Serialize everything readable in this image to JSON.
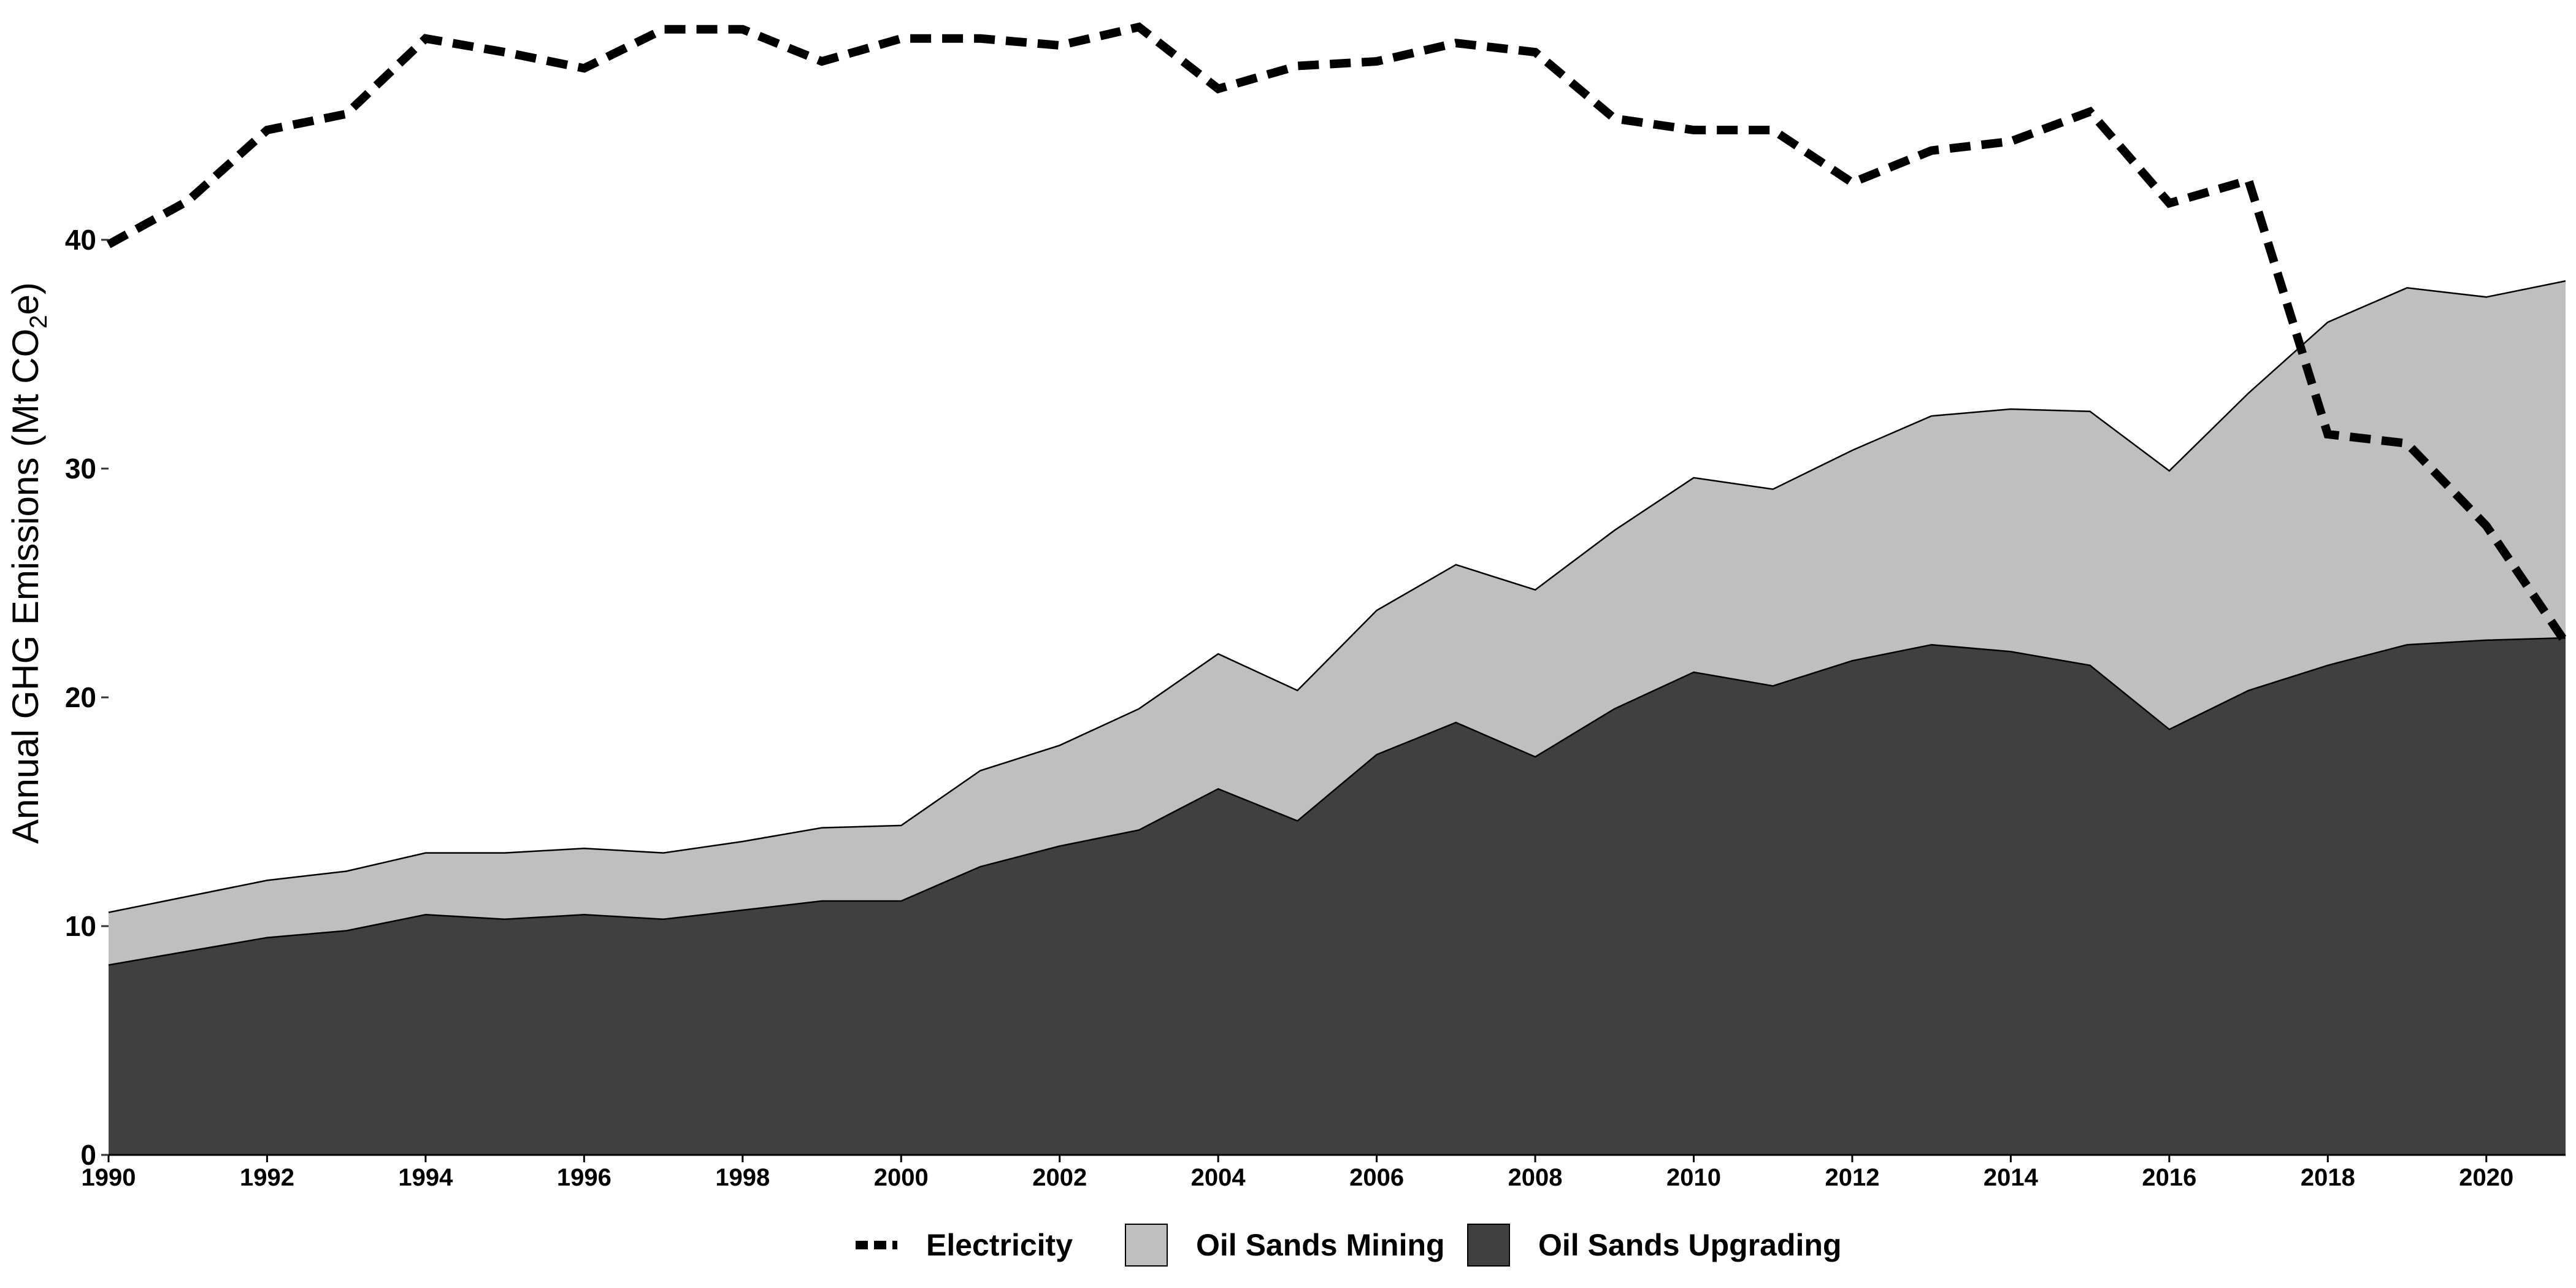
{
  "chart_data": {
    "type": "area",
    "title": "",
    "xlabel": "",
    "ylabel": "Annual GHG Emissions  (Mt CO",
    "ylabel_subscript": "2",
    "ylabel_suffix": "e)",
    "xlim": [
      1990,
      2021
    ],
    "ylim": [
      0,
      50
    ],
    "x_ticks": [
      "1990",
      "1992",
      "1994",
      "1996",
      "1998",
      "2000",
      "2002",
      "2004",
      "2006",
      "2008",
      "2010",
      "2012",
      "2014",
      "2016",
      "2018",
      "2020"
    ],
    "y_ticks": [
      "0",
      "10",
      "20",
      "30",
      "40"
    ],
    "grid": false,
    "legend_position": "bottom",
    "x": [
      1990,
      1991,
      1992,
      1993,
      1994,
      1995,
      1996,
      1997,
      1998,
      1999,
      2000,
      2001,
      2002,
      2003,
      2004,
      2005,
      2006,
      2007,
      2008,
      2009,
      2010,
      2011,
      2012,
      2013,
      2014,
      2015,
      2016,
      2017,
      2018,
      2019,
      2020,
      2021
    ],
    "series": [
      {
        "name": "Oil Sands Upgrading",
        "type": "stacked-area",
        "color": "#404040",
        "values": [
          8.3,
          8.9,
          9.5,
          9.8,
          10.5,
          10.3,
          10.5,
          10.3,
          10.7,
          11.1,
          11.1,
          12.6,
          13.5,
          14.2,
          16.0,
          14.6,
          17.5,
          18.9,
          17.4,
          19.5,
          21.1,
          20.5,
          21.6,
          22.3,
          22.0,
          21.4,
          18.6,
          20.3,
          21.4,
          22.3,
          22.5,
          22.6
        ]
      },
      {
        "name": "Oil Sands Mining",
        "type": "stacked-area",
        "color": "#bfbfbf",
        "values": [
          2.3,
          2.4,
          2.5,
          2.6,
          2.7,
          2.9,
          2.9,
          2.9,
          3.0,
          3.2,
          3.3,
          4.2,
          4.4,
          5.3,
          5.9,
          5.7,
          6.3,
          6.9,
          7.3,
          7.8,
          8.5,
          8.6,
          9.2,
          10.0,
          10.6,
          11.1,
          11.3,
          13.0,
          15.0,
          15.6,
          15.0,
          15.6
        ]
      },
      {
        "name": "Electricity",
        "type": "dashed-line",
        "color": "#000000",
        "values": [
          39.8,
          41.7,
          44.8,
          45.5,
          48.8,
          48.2,
          47.5,
          49.2,
          49.2,
          47.8,
          48.8,
          48.8,
          48.5,
          49.3,
          46.6,
          47.6,
          47.8,
          48.6,
          48.2,
          45.3,
          44.8,
          44.8,
          42.5,
          43.9,
          44.3,
          45.6,
          41.6,
          42.6,
          31.5,
          31.1,
          27.5,
          22.4
        ]
      }
    ]
  }
}
